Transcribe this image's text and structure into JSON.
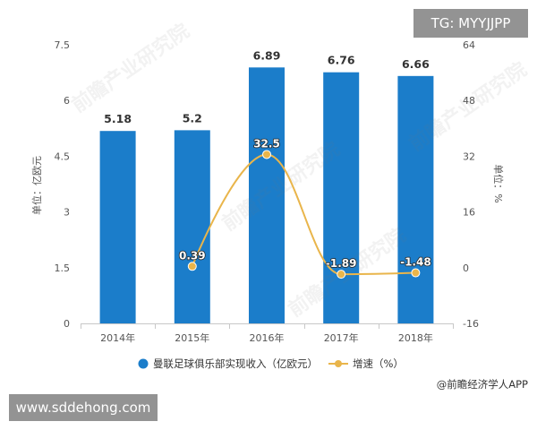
{
  "tag_box": {
    "text": "TG: MYYJJPP"
  },
  "url_box": {
    "text": "www.sddehong.com"
  },
  "source": {
    "text": "@前瞻经济学人APP"
  },
  "watermark": {
    "text": "前瞻产业研究院"
  },
  "chart_data": {
    "type": "bar",
    "categories": [
      "2014年",
      "2015年",
      "2016年",
      "2017年",
      "2018年"
    ],
    "series": [
      {
        "name": "曼联足球俱乐部实现收入（亿欧元）",
        "type": "bar",
        "axis": "left",
        "color": "#1b7dca",
        "values": [
          5.18,
          5.2,
          6.89,
          6.76,
          6.66
        ]
      },
      {
        "name": "增速（%）",
        "type": "line",
        "axis": "right",
        "color": "#e9b54b",
        "values": [
          null,
          0.39,
          32.5,
          -1.89,
          -1.48
        ]
      }
    ],
    "ylabel": "单位：亿欧元",
    "ylabel_right": "单位：%",
    "ylim": [
      0,
      7.5
    ],
    "yticks": [
      7.5,
      6,
      4.5,
      3,
      1.5,
      0
    ],
    "ylim_right": [
      -16,
      64
    ],
    "yticks_right": [
      64,
      48,
      32,
      16,
      0,
      -16
    ],
    "grid": false,
    "legend": "bottom"
  }
}
